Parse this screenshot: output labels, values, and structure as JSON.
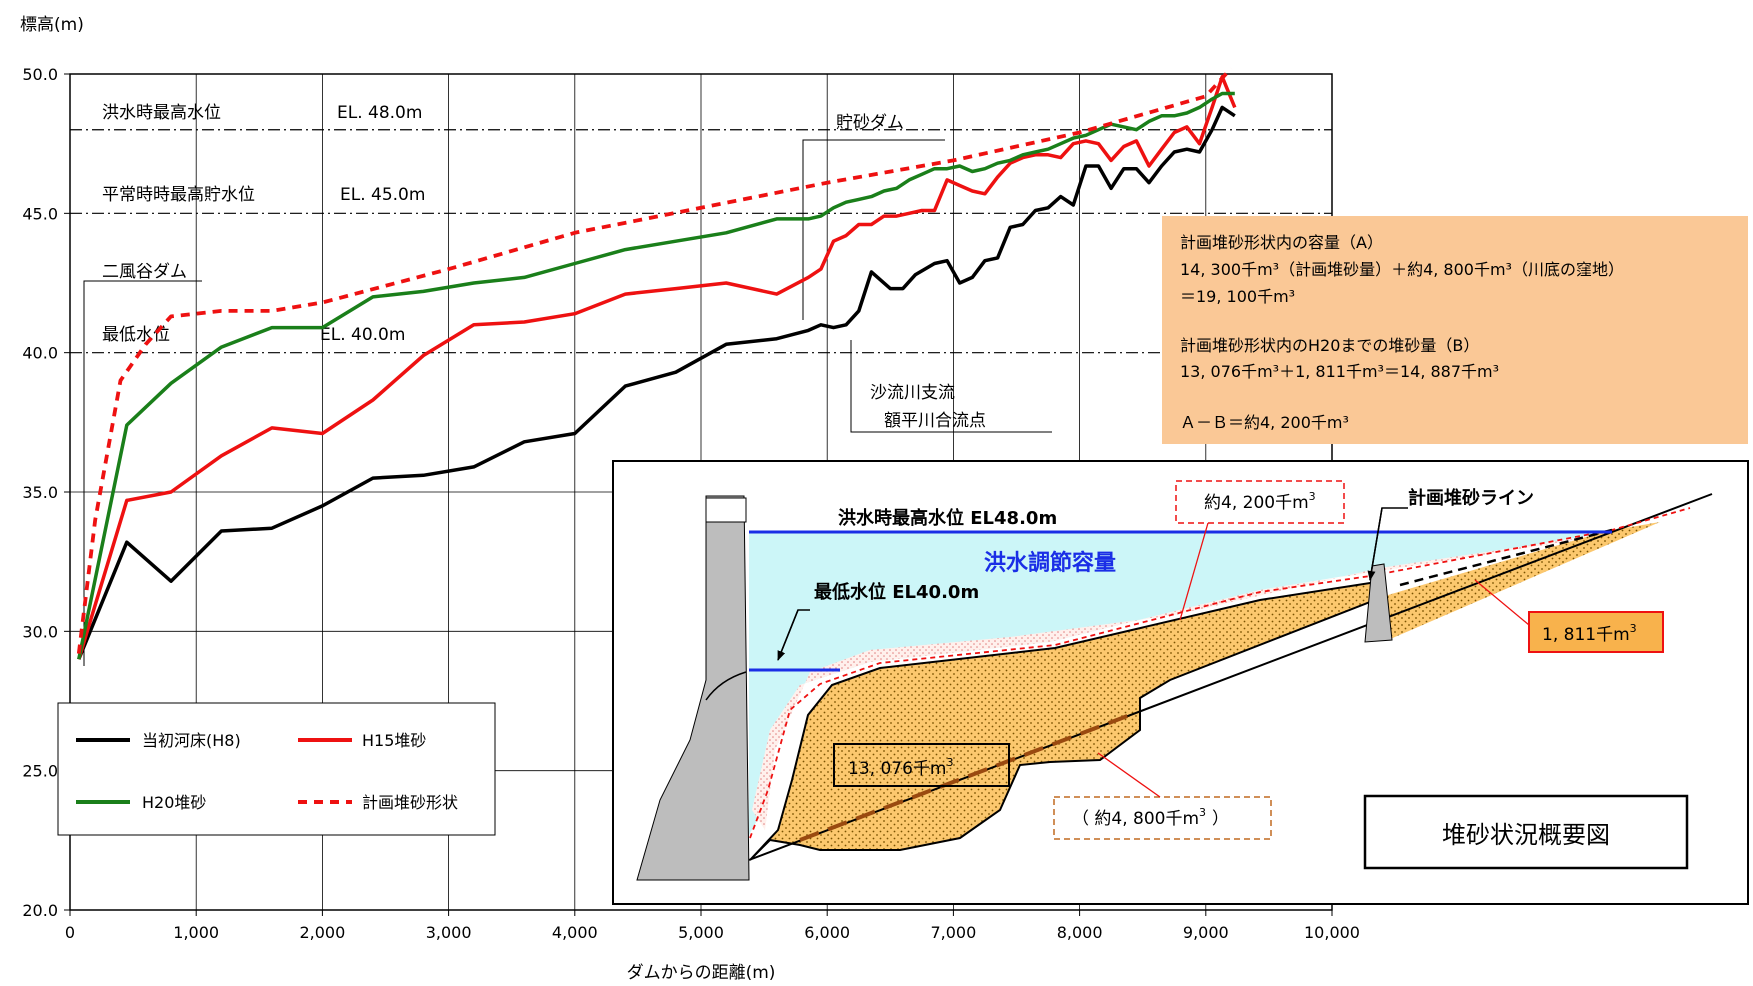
{
  "chart_data": {
    "type": "line",
    "ylabel": "標高(m)",
    "xlabel": "ダムからの距離(m)",
    "xlim": [
      0,
      10000
    ],
    "ylim": [
      20,
      50
    ],
    "xticks": [
      0,
      1000,
      2000,
      3000,
      4000,
      5000,
      6000,
      7000,
      8000,
      9000,
      10000
    ],
    "xtick_labels": [
      "0",
      "1,000",
      "2,000",
      "3,000",
      "4,000",
      "5,000",
      "6,000",
      "7,000",
      "8,000",
      "9,000",
      "10,000"
    ],
    "yticks": [
      20,
      25,
      30,
      35,
      40,
      45,
      50
    ],
    "ytick_labels": [
      "20.0",
      "25.0",
      "30.0",
      "35.0",
      "40.0",
      "45.0",
      "50.0"
    ],
    "grid": true,
    "legend_position": "bottom-left",
    "series": [
      {
        "name": "当初河床(H8)",
        "color": "#000000",
        "dash": "solid",
        "points": [
          [
            70,
            29.0
          ],
          [
            450,
            33.2
          ],
          [
            800,
            31.8
          ],
          [
            1200,
            33.6
          ],
          [
            1600,
            33.7
          ],
          [
            2000,
            34.5
          ],
          [
            2400,
            35.5
          ],
          [
            2800,
            35.6
          ],
          [
            3200,
            35.9
          ],
          [
            3600,
            36.8
          ],
          [
            4000,
            37.1
          ],
          [
            4400,
            38.8
          ],
          [
            4800,
            39.3
          ],
          [
            5200,
            40.3
          ],
          [
            5600,
            40.5
          ],
          [
            5850,
            40.8
          ],
          [
            5950,
            41.0
          ],
          [
            6050,
            40.9
          ],
          [
            6150,
            41.0
          ],
          [
            6250,
            41.5
          ],
          [
            6350,
            42.9
          ],
          [
            6500,
            42.3
          ],
          [
            6600,
            42.3
          ],
          [
            6700,
            42.8
          ],
          [
            6850,
            43.2
          ],
          [
            6950,
            43.3
          ],
          [
            7050,
            42.5
          ],
          [
            7150,
            42.7
          ],
          [
            7250,
            43.3
          ],
          [
            7350,
            43.4
          ],
          [
            7450,
            44.5
          ],
          [
            7550,
            44.6
          ],
          [
            7650,
            45.1
          ],
          [
            7750,
            45.2
          ],
          [
            7850,
            45.6
          ],
          [
            7950,
            45.3
          ],
          [
            8050,
            46.7
          ],
          [
            8150,
            46.7
          ],
          [
            8250,
            45.9
          ],
          [
            8350,
            46.6
          ],
          [
            8450,
            46.6
          ],
          [
            8550,
            46.1
          ],
          [
            8650,
            46.7
          ],
          [
            8750,
            47.2
          ],
          [
            8850,
            47.3
          ],
          [
            8950,
            47.2
          ],
          [
            9050,
            48.0
          ],
          [
            9130,
            48.8
          ],
          [
            9230,
            48.5
          ]
        ]
      },
      {
        "name": "H15堆砂",
        "color": "#ee1111",
        "dash": "solid",
        "points": [
          [
            70,
            29.0
          ],
          [
            450,
            34.7
          ],
          [
            800,
            35.0
          ],
          [
            1200,
            36.3
          ],
          [
            1600,
            37.3
          ],
          [
            2000,
            37.1
          ],
          [
            2400,
            38.3
          ],
          [
            2800,
            39.9
          ],
          [
            3200,
            41.0
          ],
          [
            3600,
            41.1
          ],
          [
            4000,
            41.4
          ],
          [
            4400,
            42.1
          ],
          [
            4800,
            42.3
          ],
          [
            5200,
            42.5
          ],
          [
            5600,
            42.1
          ],
          [
            5850,
            42.7
          ],
          [
            5950,
            43.0
          ],
          [
            6050,
            44.0
          ],
          [
            6150,
            44.2
          ],
          [
            6250,
            44.6
          ],
          [
            6350,
            44.6
          ],
          [
            6450,
            44.9
          ],
          [
            6550,
            44.9
          ],
          [
            6650,
            45.0
          ],
          [
            6750,
            45.1
          ],
          [
            6850,
            45.1
          ],
          [
            6950,
            46.2
          ],
          [
            7050,
            46.0
          ],
          [
            7150,
            45.8
          ],
          [
            7250,
            45.7
          ],
          [
            7350,
            46.3
          ],
          [
            7450,
            46.8
          ],
          [
            7550,
            47.0
          ],
          [
            7650,
            47.1
          ],
          [
            7750,
            47.1
          ],
          [
            7850,
            47.0
          ],
          [
            7950,
            47.5
          ],
          [
            8050,
            47.6
          ],
          [
            8150,
            47.5
          ],
          [
            8250,
            46.9
          ],
          [
            8350,
            47.4
          ],
          [
            8450,
            47.6
          ],
          [
            8550,
            46.7
          ],
          [
            8650,
            47.3
          ],
          [
            8750,
            47.9
          ],
          [
            8850,
            48.1
          ],
          [
            8950,
            47.5
          ],
          [
            9050,
            48.8
          ],
          [
            9130,
            49.9
          ],
          [
            9230,
            48.8
          ]
        ]
      },
      {
        "name": "H20堆砂",
        "color": "#1a7f1a",
        "dash": "solid",
        "points": [
          [
            70,
            29.0
          ],
          [
            450,
            37.4
          ],
          [
            800,
            38.9
          ],
          [
            1200,
            40.2
          ],
          [
            1600,
            40.9
          ],
          [
            2000,
            40.9
          ],
          [
            2400,
            42.0
          ],
          [
            2800,
            42.2
          ],
          [
            3200,
            42.5
          ],
          [
            3600,
            42.7
          ],
          [
            4000,
            43.2
          ],
          [
            4400,
            43.7
          ],
          [
            4800,
            44.0
          ],
          [
            5200,
            44.3
          ],
          [
            5600,
            44.8
          ],
          [
            5850,
            44.8
          ],
          [
            5950,
            44.9
          ],
          [
            6050,
            45.2
          ],
          [
            6150,
            45.4
          ],
          [
            6250,
            45.5
          ],
          [
            6350,
            45.6
          ],
          [
            6450,
            45.8
          ],
          [
            6550,
            45.9
          ],
          [
            6650,
            46.2
          ],
          [
            6750,
            46.4
          ],
          [
            6850,
            46.6
          ],
          [
            6950,
            46.6
          ],
          [
            7050,
            46.7
          ],
          [
            7150,
            46.5
          ],
          [
            7250,
            46.6
          ],
          [
            7350,
            46.8
          ],
          [
            7450,
            46.9
          ],
          [
            7550,
            47.1
          ],
          [
            7650,
            47.2
          ],
          [
            7750,
            47.3
          ],
          [
            7850,
            47.5
          ],
          [
            7950,
            47.7
          ],
          [
            8050,
            47.8
          ],
          [
            8150,
            48.0
          ],
          [
            8250,
            48.2
          ],
          [
            8350,
            48.1
          ],
          [
            8450,
            48.0
          ],
          [
            8550,
            48.3
          ],
          [
            8650,
            48.5
          ],
          [
            8750,
            48.5
          ],
          [
            8850,
            48.6
          ],
          [
            8950,
            48.8
          ],
          [
            9050,
            49.1
          ],
          [
            9130,
            49.3
          ],
          [
            9230,
            49.3
          ]
        ]
      },
      {
        "name": "計画堆砂形状",
        "color": "#ee1111",
        "dash": "dashed",
        "points": [
          [
            70,
            29.2
          ],
          [
            200,
            34.0
          ],
          [
            400,
            39.0
          ],
          [
            600,
            40.3
          ],
          [
            800,
            41.3
          ],
          [
            1200,
            41.5
          ],
          [
            1600,
            41.5
          ],
          [
            2000,
            41.8
          ],
          [
            3000,
            43.0
          ],
          [
            4000,
            44.3
          ],
          [
            5000,
            45.2
          ],
          [
            6000,
            46.1
          ],
          [
            7000,
            46.9
          ],
          [
            8000,
            47.9
          ],
          [
            9000,
            49.2
          ],
          [
            9200,
            50.2
          ]
        ]
      }
    ],
    "reference_lines": [
      {
        "label": "洪水時最高水位",
        "value_label": "EL. 48.0m",
        "y": 48.0
      },
      {
        "label": "平常時時最高貯水位",
        "value_label": "EL. 45.0m",
        "y": 45.0
      },
      {
        "label": "最低水位",
        "value_label": "EL. 40.0m",
        "y": 40.0
      }
    ],
    "annotations": {
      "dam_label": "二風谷ダム",
      "check_dam_label": "貯砂ダム",
      "confluence_line1": "沙流川支流",
      "confluence_line2": "額平川合流点"
    }
  },
  "info_box": {
    "background": "#fac896",
    "lines": [
      "計画堆砂形状内の容量（A）",
      "14, 300千m³（計画堆砂量）＋約4, 800千m³（川底の窪地）",
      "＝19, 100千m³",
      "",
      "計画堆砂形状内のH20までの堆砂量（B）",
      "13, 076千m³＋1, 811千m³＝14, 887千m³",
      "",
      "Ａ－Ｂ＝約4, 200千m³"
    ]
  },
  "inset": {
    "title": "堆砂状況概要図",
    "flood_level_label": "洪水時最高水位  EL48.0m",
    "min_level_label": "最低水位  EL40.0m",
    "capacity_label": "洪水調節容量",
    "planned_line_label": "計画堆砂ライン",
    "vol_a": "約4, 200千m",
    "vol_b": "1, 811千m",
    "vol_c": "13, 076千m",
    "vol_d": "（ 約4, 800千m",
    "vol_d_suffix": "）",
    "sup": "3",
    "colors": {
      "water": "#ccf6f8",
      "sediment": "#fcc86e",
      "flood_line": "#1a2ee6",
      "dam": "#bdbdbd",
      "vol_b_box": "#f8b24c",
      "dashed_brown": "#9a4a10"
    }
  }
}
